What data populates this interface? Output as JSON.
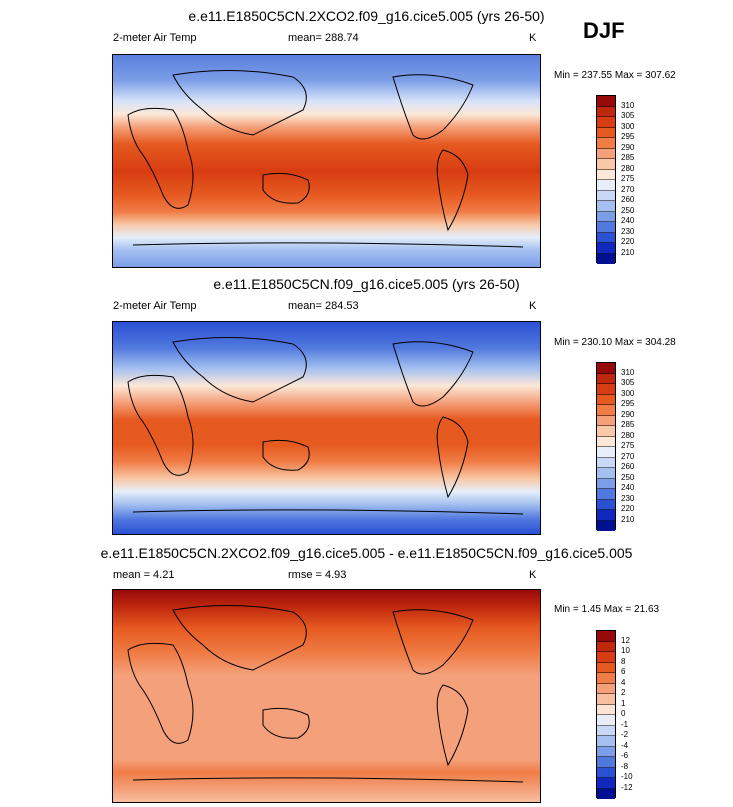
{
  "season": "DJF",
  "panels": [
    {
      "title": "e.e11.E1850C5CN.2XCO2.f09_g16.cice5.005 (yrs 26-50)",
      "variable": "2-meter Air Temp",
      "stat_text": "mean= 288.74",
      "units": "K",
      "minmax": "Min = 237.55 Max = 307.62",
      "colorbar_labels": [
        "310",
        "305",
        "300",
        "295",
        "290",
        "285",
        "280",
        "275",
        "270",
        "260",
        "250",
        "240",
        "230",
        "220",
        "210"
      ],
      "colorbar_colors": [
        "#960a0a",
        "#c0280e",
        "#d83c12",
        "#e65a20",
        "#f07c46",
        "#f4a07a",
        "#f8c8a8",
        "#fce8d8",
        "#e6eefa",
        "#c8d8f6",
        "#a4c0f0",
        "#7c9ee8",
        "#5078de",
        "#2a50d4",
        "#1028c0",
        "#001090"
      ]
    },
    {
      "title": "e.e11.E1850C5CN.f09_g16.cice5.005 (yrs 26-50)",
      "variable": "2-meter Air Temp",
      "stat_text": "mean= 284.53",
      "units": "K",
      "minmax": "Min = 230.10 Max = 304.28",
      "colorbar_labels": [
        "310",
        "305",
        "300",
        "295",
        "290",
        "285",
        "280",
        "275",
        "270",
        "260",
        "250",
        "240",
        "230",
        "220",
        "210"
      ],
      "colorbar_colors": [
        "#960a0a",
        "#c0280e",
        "#d83c12",
        "#e65a20",
        "#f07c46",
        "#f4a07a",
        "#f8c8a8",
        "#fce8d8",
        "#e6eefa",
        "#c8d8f6",
        "#a4c0f0",
        "#7c9ee8",
        "#5078de",
        "#2a50d4",
        "#1028c0",
        "#001090"
      ]
    },
    {
      "title": "e.e11.E1850C5CN.2XCO2.f09_g16.cice5.005 - e.e11.E1850C5CN.f09_g16.cice5.005",
      "variable": "mean =   4.21",
      "stat_text": "rmse =   4.93",
      "units": "K",
      "minmax": "Min =  1.45 Max =  21.63",
      "colorbar_labels": [
        "12",
        "10",
        "8",
        "6",
        "4",
        "2",
        "1",
        "0",
        "-1",
        "-2",
        "-4",
        "-6",
        "-8",
        "-10",
        "-12"
      ],
      "colorbar_colors": [
        "#960a0a",
        "#c0280e",
        "#d83c12",
        "#e65a20",
        "#f07c46",
        "#f4a07a",
        "#f8c0a0",
        "#fce4d4",
        "#e8eef8",
        "#c8d8f6",
        "#a4c0f0",
        "#7c9ee8",
        "#5078de",
        "#2a50d4",
        "#1028c0",
        "#001090"
      ]
    }
  ]
}
